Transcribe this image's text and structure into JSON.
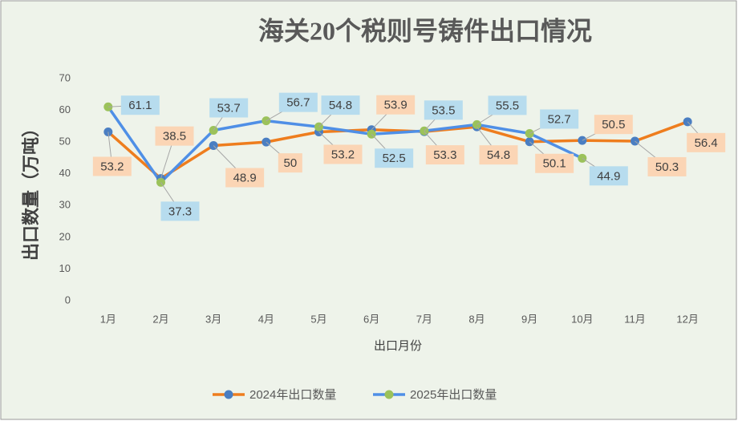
{
  "chart_data": {
    "type": "line",
    "title": "海关20个税则号铸件出口情况",
    "y_label": "出口数量（万吨）",
    "x_label": "出口月份",
    "categories": [
      "1月",
      "2月",
      "3月",
      "4月",
      "5月",
      "6月",
      "7月",
      "8月",
      "9月",
      "10月",
      "11月",
      "12月"
    ],
    "series": [
      {
        "name": "2024年出口数量",
        "color": "#ee7d1e",
        "marker_color": "#4a7ec2",
        "label_color": "#fbd5b5",
        "values": [
          53.2,
          38.5,
          48.9,
          50,
          53.2,
          53.9,
          53.3,
          54.8,
          50.1,
          50.5,
          50.3,
          56.4
        ]
      },
      {
        "name": "2025年出口数量",
        "color": "#4f8fe6",
        "marker_color": "#9bc25a",
        "label_color": "#b7dcee",
        "values": [
          61.1,
          37.3,
          53.7,
          56.7,
          54.8,
          52.5,
          53.5,
          55.5,
          52.7,
          44.9,
          null,
          null
        ]
      }
    ],
    "ylim": [
      0,
      70
    ],
    "yticks": [
      0,
      10,
      20,
      30,
      40,
      50,
      60,
      70
    ],
    "legend": "bottom"
  }
}
